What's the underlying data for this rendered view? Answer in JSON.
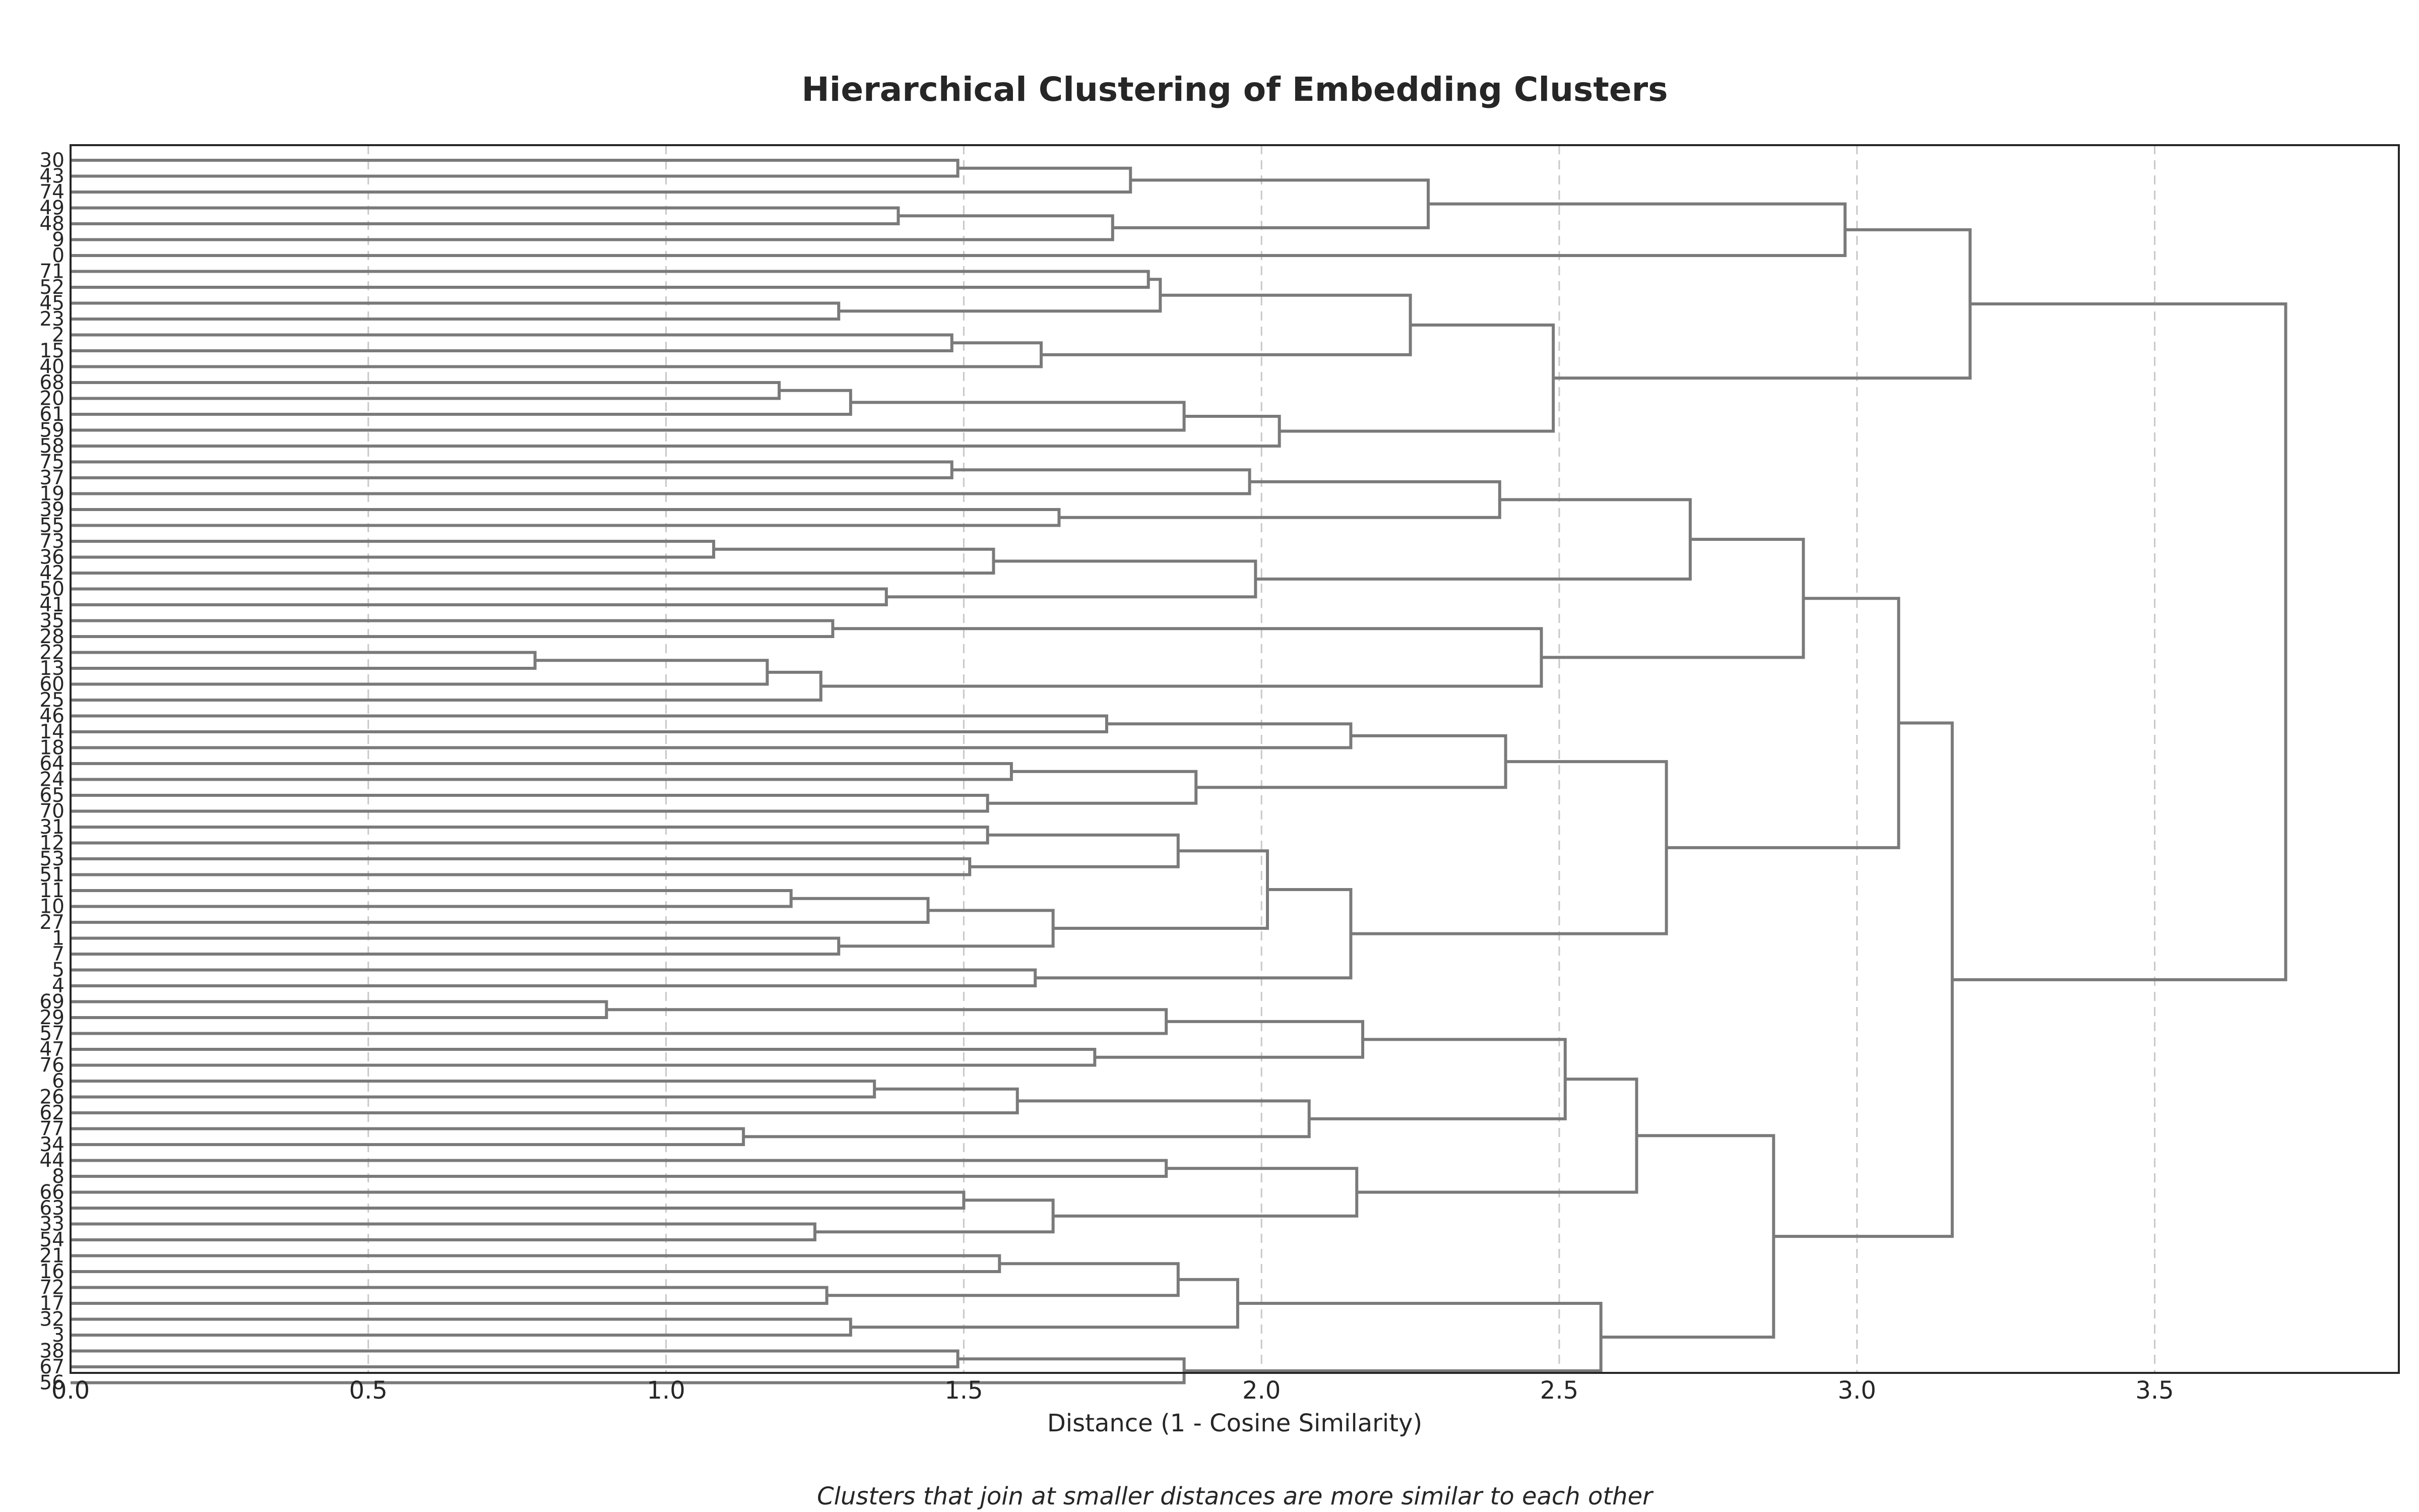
{
  "chart_data": {
    "type": "dendrogram",
    "orientation": "horizontal",
    "title": "Hierarchical Clustering of Embedding Clusters",
    "xlabel": "Distance (1 - Cosine Similarity)",
    "note": "Clusters that join at smaller distances are more similar to each other",
    "xlim": [
      0,
      3.91
    ],
    "xticks": [
      0.0,
      0.5,
      1.0,
      1.5,
      2.0,
      2.5,
      3.0,
      3.5
    ],
    "xtick_labels": [
      "0.0",
      "0.5",
      "1.0",
      "1.5",
      "2.0",
      "2.5",
      "3.0",
      "3.5"
    ],
    "grid": true,
    "leaves": [
      "30",
      "43",
      "74",
      "49",
      "48",
      "9",
      "0",
      "71",
      "52",
      "45",
      "23",
      "2",
      "15",
      "40",
      "68",
      "20",
      "61",
      "59",
      "58",
      "75",
      "37",
      "19",
      "39",
      "55",
      "73",
      "36",
      "42",
      "50",
      "41",
      "35",
      "28",
      "22",
      "13",
      "60",
      "25",
      "46",
      "14",
      "18",
      "64",
      "24",
      "65",
      "70",
      "31",
      "12",
      "53",
      "51",
      "11",
      "10",
      "27",
      "1",
      "7",
      "5",
      "4",
      "69",
      "29",
      "57",
      "47",
      "76",
      "6",
      "26",
      "62",
      "77",
      "34",
      "44",
      "8",
      "66",
      "63",
      "33",
      "54",
      "21",
      "16",
      "72",
      "17",
      "32",
      "3",
      "38",
      "67",
      "56"
    ],
    "merges": [
      {
        "id": "a1",
        "children": [
          "30",
          "43"
        ],
        "distance": 1.49
      },
      {
        "id": "a2",
        "children": [
          "a1",
          "74"
        ],
        "distance": 1.78
      },
      {
        "id": "a3",
        "children": [
          "49",
          "48"
        ],
        "distance": 1.39
      },
      {
        "id": "a4",
        "children": [
          "a3",
          "9"
        ],
        "distance": 1.75
      },
      {
        "id": "a5",
        "children": [
          "a2",
          "a4"
        ],
        "distance": 2.28
      },
      {
        "id": "a6",
        "children": [
          "a5",
          "0"
        ],
        "distance": 2.98
      },
      {
        "id": "b1",
        "children": [
          "71",
          "52"
        ],
        "distance": 1.81
      },
      {
        "id": "b2",
        "children": [
          "45",
          "23"
        ],
        "distance": 1.29
      },
      {
        "id": "b3",
        "children": [
          "b1",
          "b2"
        ],
        "distance": 1.83
      },
      {
        "id": "b4",
        "children": [
          "2",
          "15"
        ],
        "distance": 1.48
      },
      {
        "id": "b5",
        "children": [
          "b4",
          "40"
        ],
        "distance": 1.63
      },
      {
        "id": "b6",
        "children": [
          "b3",
          "b5"
        ],
        "distance": 2.25
      },
      {
        "id": "b7",
        "children": [
          "68",
          "20"
        ],
        "distance": 1.19
      },
      {
        "id": "b8",
        "children": [
          "b7",
          "61"
        ],
        "distance": 1.31
      },
      {
        "id": "b9",
        "children": [
          "b8",
          "59"
        ],
        "distance": 1.87
      },
      {
        "id": "b10",
        "children": [
          "b9",
          "58"
        ],
        "distance": 2.03
      },
      {
        "id": "b11",
        "children": [
          "b6",
          "b10"
        ],
        "distance": 2.49
      },
      {
        "id": "b12",
        "children": [
          "a6",
          "b11"
        ],
        "distance": 3.19
      },
      {
        "id": "c1",
        "children": [
          "75",
          "37"
        ],
        "distance": 1.48
      },
      {
        "id": "c2",
        "children": [
          "c1",
          "19"
        ],
        "distance": 1.98
      },
      {
        "id": "c3",
        "children": [
          "39",
          "55"
        ],
        "distance": 1.66
      },
      {
        "id": "c4",
        "children": [
          "c2",
          "c3"
        ],
        "distance": 2.4
      },
      {
        "id": "c5",
        "children": [
          "73",
          "36"
        ],
        "distance": 1.08
      },
      {
        "id": "c6",
        "children": [
          "c5",
          "42"
        ],
        "distance": 1.55
      },
      {
        "id": "c7",
        "children": [
          "50",
          "41"
        ],
        "distance": 1.37
      },
      {
        "id": "c8",
        "children": [
          "c6",
          "c7"
        ],
        "distance": 1.99
      },
      {
        "id": "c9",
        "children": [
          "c4",
          "c8"
        ],
        "distance": 2.72
      },
      {
        "id": "c10",
        "children": [
          "35",
          "28"
        ],
        "distance": 1.28
      },
      {
        "id": "c11",
        "children": [
          "22",
          "13"
        ],
        "distance": 0.78
      },
      {
        "id": "c12",
        "children": [
          "c11",
          "60"
        ],
        "distance": 1.17
      },
      {
        "id": "c13",
        "children": [
          "c12",
          "25"
        ],
        "distance": 1.26
      },
      {
        "id": "c14",
        "children": [
          "c10",
          "c13"
        ],
        "distance": 2.47
      },
      {
        "id": "c15",
        "children": [
          "c9",
          "c14"
        ],
        "distance": 2.91
      },
      {
        "id": "d1",
        "children": [
          "46",
          "14"
        ],
        "distance": 1.74
      },
      {
        "id": "d2",
        "children": [
          "d1",
          "18"
        ],
        "distance": 2.15
      },
      {
        "id": "d3",
        "children": [
          "64",
          "24"
        ],
        "distance": 1.58
      },
      {
        "id": "d4",
        "children": [
          "65",
          "70"
        ],
        "distance": 1.54
      },
      {
        "id": "d5",
        "children": [
          "d3",
          "d4"
        ],
        "distance": 1.89
      },
      {
        "id": "d6",
        "children": [
          "d2",
          "d5"
        ],
        "distance": 2.41
      },
      {
        "id": "d7",
        "children": [
          "31",
          "12"
        ],
        "distance": 1.54
      },
      {
        "id": "d8",
        "children": [
          "53",
          "51"
        ],
        "distance": 1.51
      },
      {
        "id": "d9",
        "children": [
          "d7",
          "d8"
        ],
        "distance": 1.86
      },
      {
        "id": "d10",
        "children": [
          "11",
          "10"
        ],
        "distance": 1.21
      },
      {
        "id": "d11",
        "children": [
          "d10",
          "27"
        ],
        "distance": 1.44
      },
      {
        "id": "d12",
        "children": [
          "1",
          "7"
        ],
        "distance": 1.29
      },
      {
        "id": "d13",
        "children": [
          "d11",
          "d12"
        ],
        "distance": 1.65
      },
      {
        "id": "d14",
        "children": [
          "d9",
          "d13"
        ],
        "distance": 2.01
      },
      {
        "id": "d15",
        "children": [
          "5",
          "4"
        ],
        "distance": 1.62
      },
      {
        "id": "d16",
        "children": [
          "d14",
          "d15"
        ],
        "distance": 2.15
      },
      {
        "id": "d17",
        "children": [
          "d6",
          "d16"
        ],
        "distance": 2.68
      },
      {
        "id": "d18",
        "children": [
          "c15",
          "d17"
        ],
        "distance": 3.07
      },
      {
        "id": "e1",
        "children": [
          "69",
          "29"
        ],
        "distance": 0.9
      },
      {
        "id": "e2",
        "children": [
          "e1",
          "57"
        ],
        "distance": 1.84
      },
      {
        "id": "e3",
        "children": [
          "47",
          "76"
        ],
        "distance": 1.72
      },
      {
        "id": "e4",
        "children": [
          "e2",
          "e3"
        ],
        "distance": 2.17
      },
      {
        "id": "e5",
        "children": [
          "6",
          "26"
        ],
        "distance": 1.35
      },
      {
        "id": "e6",
        "children": [
          "e5",
          "62"
        ],
        "distance": 1.59
      },
      {
        "id": "e7",
        "children": [
          "77",
          "34"
        ],
        "distance": 1.13
      },
      {
        "id": "e8",
        "children": [
          "e6",
          "e7"
        ],
        "distance": 2.08
      },
      {
        "id": "e9",
        "children": [
          "e4",
          "e8"
        ],
        "distance": 2.51
      },
      {
        "id": "e10",
        "children": [
          "44",
          "8"
        ],
        "distance": 1.84
      },
      {
        "id": "e11",
        "children": [
          "66",
          "63"
        ],
        "distance": 1.5
      },
      {
        "id": "e12",
        "children": [
          "33",
          "54"
        ],
        "distance": 1.25
      },
      {
        "id": "e13",
        "children": [
          "e11",
          "e12"
        ],
        "distance": 1.65
      },
      {
        "id": "e14",
        "children": [
          "e10",
          "e13"
        ],
        "distance": 2.16
      },
      {
        "id": "e15",
        "children": [
          "e9",
          "e14"
        ],
        "distance": 2.63
      },
      {
        "id": "e16",
        "children": [
          "21",
          "16"
        ],
        "distance": 1.56
      },
      {
        "id": "e17",
        "children": [
          "72",
          "17"
        ],
        "distance": 1.27
      },
      {
        "id": "e18",
        "children": [
          "e16",
          "e17"
        ],
        "distance": 1.86
      },
      {
        "id": "e19",
        "children": [
          "32",
          "3"
        ],
        "distance": 1.31
      },
      {
        "id": "e20",
        "children": [
          "e18",
          "e19"
        ],
        "distance": 1.96
      },
      {
        "id": "e21",
        "children": [
          "38",
          "67"
        ],
        "distance": 1.49
      },
      {
        "id": "e22",
        "children": [
          "e21",
          "56"
        ],
        "distance": 1.87
      },
      {
        "id": "e23",
        "children": [
          "e20",
          "e22"
        ],
        "distance": 2.57
      },
      {
        "id": "e24",
        "children": [
          "e15",
          "e23"
        ],
        "distance": 2.86
      },
      {
        "id": "e25",
        "children": [
          "d18",
          "e24"
        ],
        "distance": 3.16
      },
      {
        "id": "root",
        "children": [
          "b12",
          "e25"
        ],
        "distance": 3.72
      }
    ]
  }
}
